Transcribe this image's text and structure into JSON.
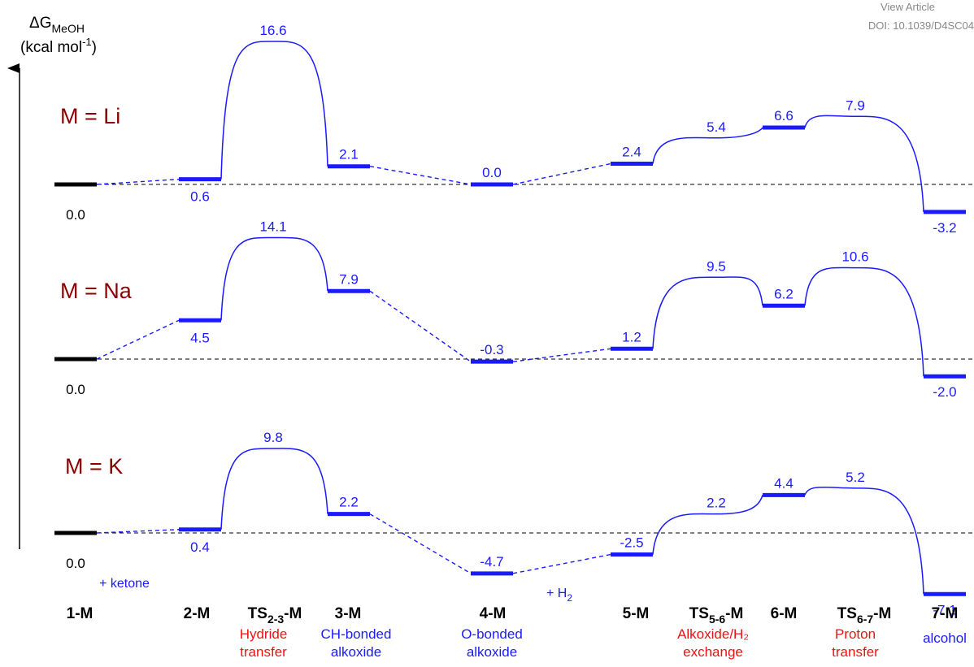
{
  "header": {
    "view_article": "View Article",
    "doi": "DOI: 10.1039/D4SC04"
  },
  "axis": {
    "ylabel_main": "ΔG",
    "ylabel_sub": "MeOH",
    "ylabel_units": "(kcal mol",
    "ylabel_units_sup": "-1",
    "ylabel_units_close": ")"
  },
  "zero_label": "0.0",
  "chart_data": {
    "type": "energy-profile",
    "stages": [
      {
        "label": "1-M"
      },
      {
        "label": "2-M"
      },
      {
        "label": "TS",
        "sub": "2-3",
        "suffix": "-M"
      },
      {
        "label": "3-M"
      },
      {
        "label": "4-M"
      },
      {
        "label": "5-M"
      },
      {
        "label": "TS",
        "sub": "5-6",
        "suffix": "-M"
      },
      {
        "label": "6-M"
      },
      {
        "label": "TS",
        "sub": "6-7",
        "suffix": "-M"
      },
      {
        "label": "7-M"
      }
    ],
    "descriptions": [
      {
        "stage": 2,
        "lines": [
          "Hydride",
          "transfer"
        ],
        "color": "red"
      },
      {
        "stage": 3,
        "lines": [
          "CH-bonded",
          "alkoxide"
        ],
        "color": "blue"
      },
      {
        "stage": 4,
        "lines": [
          "O-bonded",
          "alkoxide"
        ],
        "color": "blue"
      },
      {
        "stage": 6,
        "lines": [
          "Alkoxide/H₂",
          "exchange"
        ],
        "color": "red"
      },
      {
        "stage": 8,
        "lines": [
          "Proton",
          "transfer"
        ],
        "color": "red"
      },
      {
        "stage": 9,
        "lines": [
          "alcohol"
        ],
        "color": "blue"
      }
    ],
    "reagents": [
      {
        "text": "+ ketone"
      },
      {
        "text": "+ H",
        "sub": "2"
      }
    ],
    "series": [
      {
        "name": "M = Li",
        "values": [
          0.0,
          0.6,
          16.6,
          2.1,
          0.0,
          2.4,
          5.4,
          6.6,
          7.9,
          -3.2
        ],
        "labels": [
          "0.0",
          "0.6",
          "16.6",
          "2.1",
          "0.0",
          "2.4",
          "5.4",
          "6.6",
          "7.9",
          "-3.2"
        ]
      },
      {
        "name": "M = Na",
        "values": [
          0.0,
          4.5,
          14.1,
          7.9,
          -0.3,
          1.2,
          9.5,
          6.2,
          10.6,
          -2.0
        ],
        "labels": [
          "0.0",
          "4.5",
          "14.1",
          "7.9",
          "-0.3",
          "1.2",
          "9.5",
          "6.2",
          "10.6",
          "-2.0"
        ]
      },
      {
        "name": "M = K",
        "values": [
          0.0,
          0.4,
          9.8,
          2.2,
          -4.7,
          -2.5,
          2.2,
          4.4,
          5.2,
          -7.1
        ],
        "labels": [
          "0.0",
          "0.4",
          "9.8",
          "2.2",
          "-4.7",
          "-2.5",
          "2.2",
          "4.4",
          "5.2",
          "-7.1"
        ]
      }
    ],
    "colors": {
      "profile": "#1a1aff",
      "reference": "#000000",
      "panel_label": "#8b0000",
      "desc_red": "#ee1111"
    }
  }
}
